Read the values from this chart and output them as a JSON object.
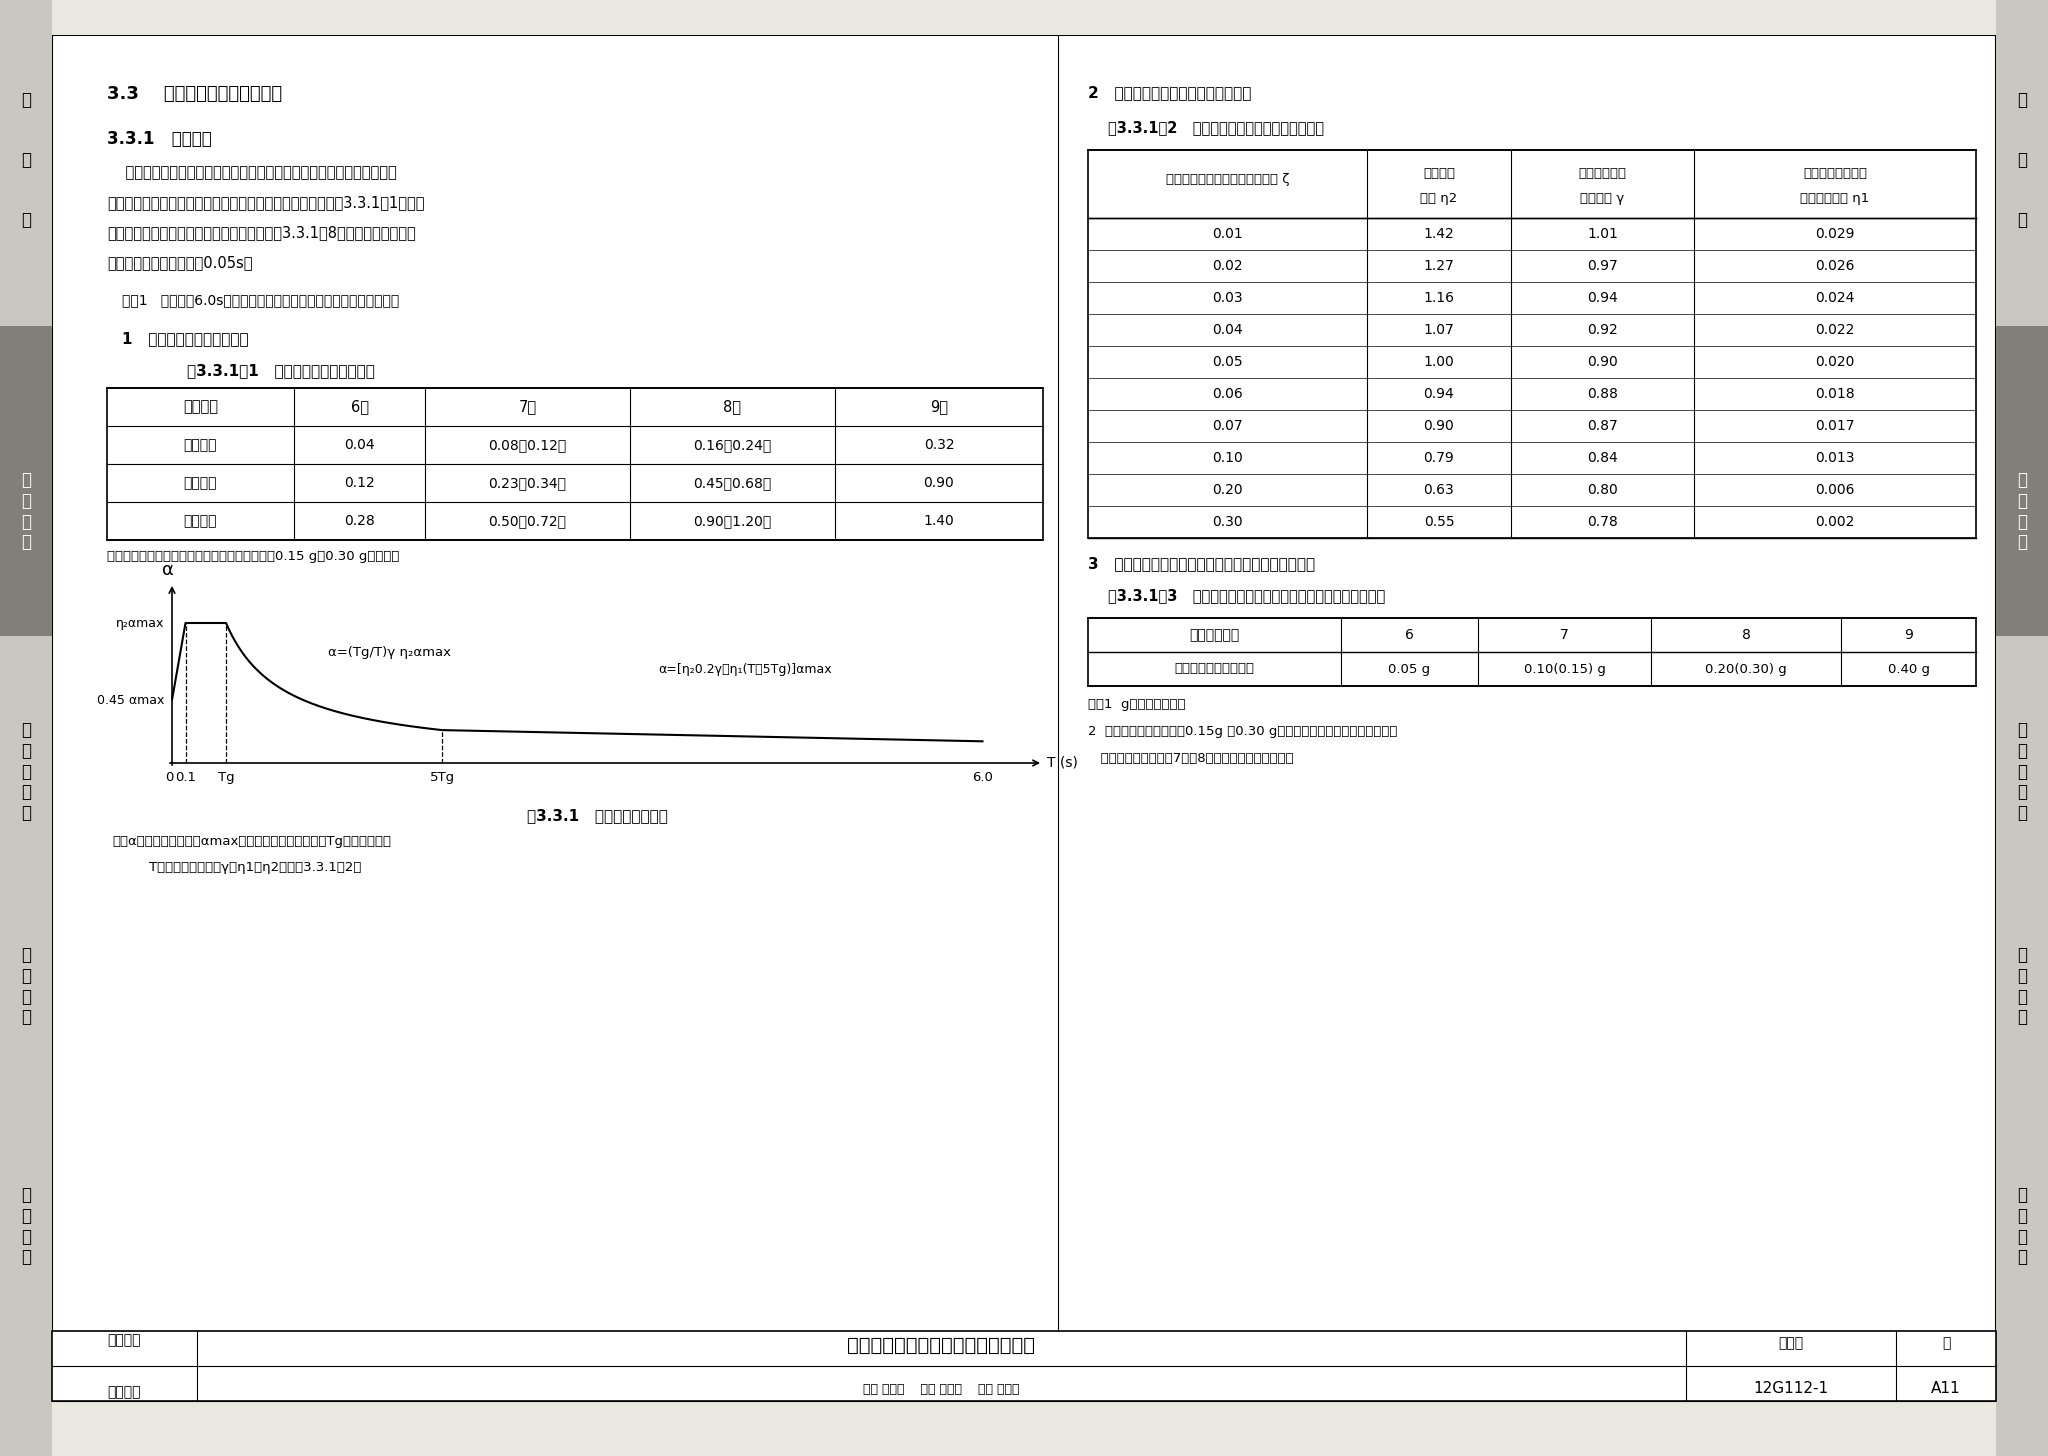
{
  "page_bg": "#e8e8e0",
  "content_bg": "#ffffff",
  "sidebar_light": "#c8c8c0",
  "sidebar_dark": "#808078",
  "title_33": "3.3    地震作用和结构抗震验算",
  "title_331": "3.3.1   一般规定",
  "para_lines": [
    "    建筑结构的地震影响系数应根据烈度、场地类别、设计地震分组和结构",
    "自振周期以及阻尼比确定。其水平地震影响系数最大值应按表3.3.1－1采用；",
    "特征周期应根据场地类别和设计地震分组按表3.3.1－8采用，计算罕遇地震",
    "作用时，特征周期应增加0.05s。"
  ],
  "note1": "注：1   周期大于6.0s的建筑结构所采用的地震影响系数应专门研究；",
  "section1_title": "1   水平地震影响系数最大值",
  "table1_title": "表3.3.1－1   水平地震影响系数最大值",
  "table1_headers": [
    "地震影响",
    "6度",
    "7度",
    "8度",
    "9度"
  ],
  "table1_rows": [
    [
      "多遇地震",
      "0.04",
      "0.08（0.12）",
      "0.16（0.24）",
      "0.32"
    ],
    [
      "设防地震",
      "0.12",
      "0.23（0.34）",
      "0.45（0.68）",
      "0.90"
    ],
    [
      "罕遇地震",
      "0.28",
      "0.50（0.72）",
      "0.90（1.20）",
      "1.40"
    ]
  ],
  "table1_note": "注：括号中数值分别用于设计基本地震加速度为0.15 g和0.30 g的地区。",
  "section2_title": "2   不同阻尼比时衰减指数和调整系数",
  "table2_title": "表3.3.1－2   不同阻尼比时衰减指数和调整系数",
  "table2_header_col1": "在多遇地震下建筑结构的阻尼比 ζ",
  "table2_header_col2": [
    "阻尼调整",
    "系数 η2"
  ],
  "table2_header_col3": [
    "曲线下降段的",
    "衰减指数 γ"
  ],
  "table2_header_col4": [
    "直线下降段的下降",
    "斜率调整系数 η1"
  ],
  "table2_data": [
    [
      "0.01",
      "1.42",
      "1.01",
      "0.029"
    ],
    [
      "0.02",
      "1.27",
      "0.97",
      "0.026"
    ],
    [
      "0.03",
      "1.16",
      "0.94",
      "0.024"
    ],
    [
      "0.04",
      "1.07",
      "0.92",
      "0.022"
    ],
    [
      "0.05",
      "1.00",
      "0.90",
      "0.020"
    ],
    [
      "0.06",
      "0.94",
      "0.88",
      "0.018"
    ],
    [
      "0.07",
      "0.90",
      "0.87",
      "0.017"
    ],
    [
      "0.10",
      "0.79",
      "0.84",
      "0.013"
    ],
    [
      "0.20",
      "0.63",
      "0.80",
      "0.006"
    ],
    [
      "0.30",
      "0.55",
      "0.78",
      "0.002"
    ]
  ],
  "section3_title": "3   抗震设防烈度和设计基本地震加速度值的对应关系",
  "table3_title": "表3.3.1－3   抗震设防烈度和设计基本地震加速度值的对应关系",
  "table3_headers": [
    "抗震设防烈度",
    "6",
    "7",
    "8",
    "9"
  ],
  "table3_row": [
    "设计基本地震加速度值",
    "0.05 g",
    "0.10(0.15) g",
    "0.20(0.30) g",
    "0.40 g"
  ],
  "table3_notes": [
    "注：1  g为重力加速度。",
    "2  设计基本地震加速度为0.15g 和0.30 g地区内的建筑，除另有规定外，应",
    "   分别按抗震设防烈度7度和8度的要求进行抗震设计。"
  ],
  "fig_title": "图3.3.1   地震影响系数曲线",
  "fig_notes": [
    "注：α－地震影响系数；αmax－地震影响系数最大值；Tg－特征周期；",
    "    T－结构自振周期；γ、η1、η2－见表3.3.1－2。"
  ],
  "footer_left": [
    "结构设计",
    "基本数据"
  ],
  "footer_center": "地震作用和结构抗震验算的一般规定",
  "footer_stamp_area": "审核 陈雪光    校对 李国胜    设计 张玉梅",
  "footer_label": "图集号",
  "footer_num": "12G112-1",
  "footer_page_label": "页",
  "footer_page": "A11",
  "sidebar_left_top": [
    "总",
    "说",
    "明"
  ],
  "sidebar_left_highlight": "基\n本\n数\n据",
  "sidebar_left_bottom": [
    "混\n凝\n土\n结\n构",
    "砌\n体\n结\n构",
    "地\n基\n基\n础"
  ],
  "sidebar_right_top": [
    "总",
    "说",
    "明"
  ],
  "sidebar_right_highlight": "基\n本\n数\n据",
  "sidebar_right_bottom": [
    "混\n凝\n土\n结\n构",
    "砌\n体\n结\n构",
    "地\n基\n基\n础"
  ]
}
